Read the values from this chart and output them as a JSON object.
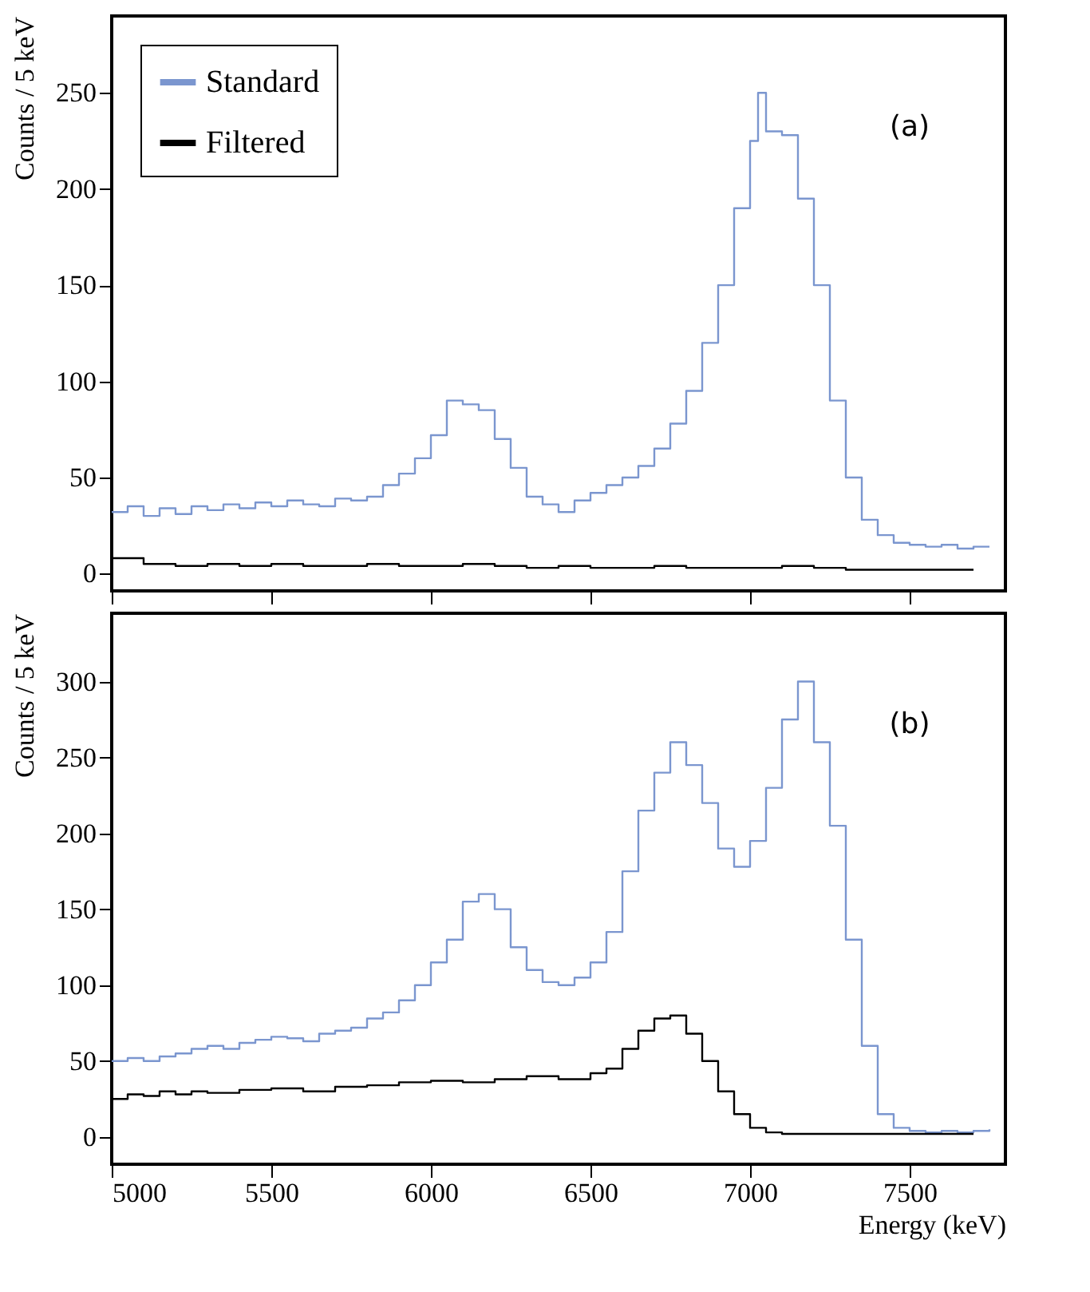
{
  "chart_data": [
    {
      "type": "step",
      "ylabel": "Counts / 5 keV",
      "annotations": [
        "(a)"
      ],
      "xlim": [
        5000,
        7800
      ],
      "xticks": [
        5000,
        5500,
        6000,
        6500,
        7000,
        7500
      ],
      "ylim": [
        -9,
        290
      ],
      "yticks": [
        0,
        50,
        100,
        150,
        200,
        250
      ],
      "tick_labels": "y",
      "grid": false,
      "legend": "top left",
      "line_style": "solid",
      "marker": "none",
      "series": [
        {
          "name": "Standard",
          "color": "#7b96cf",
          "x": [
            5000,
            5050,
            5100,
            5150,
            5200,
            5250,
            5300,
            5350,
            5400,
            5450,
            5500,
            5550,
            5600,
            5650,
            5700,
            5750,
            5800,
            5850,
            5900,
            5950,
            6000,
            6050,
            6100,
            6150,
            6200,
            6250,
            6300,
            6350,
            6400,
            6450,
            6500,
            6550,
            6600,
            6650,
            6700,
            6750,
            6800,
            6850,
            6900,
            6950,
            7000,
            7025,
            7050,
            7100,
            7150,
            7200,
            7250,
            7300,
            7350,
            7400,
            7450,
            7500,
            7550,
            7600,
            7650,
            7700,
            7750
          ],
          "values": [
            32,
            35,
            30,
            34,
            31,
            35,
            33,
            36,
            34,
            37,
            35,
            38,
            36,
            35,
            39,
            38,
            40,
            46,
            52,
            60,
            72,
            90,
            88,
            85,
            70,
            55,
            40,
            36,
            32,
            38,
            42,
            46,
            50,
            56,
            65,
            78,
            95,
            120,
            150,
            190,
            225,
            250,
            230,
            228,
            195,
            150,
            90,
            50,
            28,
            20,
            16,
            15,
            14,
            15,
            13,
            14,
            14
          ]
        },
        {
          "name": "Filtered",
          "color": "#000000",
          "x": [
            5000,
            5100,
            5200,
            5300,
            5400,
            5500,
            5600,
            5700,
            5800,
            5900,
            6000,
            6100,
            6200,
            6300,
            6400,
            6500,
            6600,
            6700,
            6800,
            6900,
            7000,
            7100,
            7200,
            7300,
            7400,
            7500,
            7600,
            7700
          ],
          "values": [
            8,
            5,
            4,
            5,
            4,
            5,
            4,
            4,
            5,
            4,
            4,
            5,
            4,
            3,
            4,
            3,
            3,
            4,
            3,
            3,
            3,
            4,
            3,
            2,
            2,
            2,
            2,
            2
          ]
        }
      ]
    },
    {
      "type": "step",
      "xlabel": "Energy (keV)",
      "ylabel": "Counts / 5 keV",
      "annotations": [
        "(b)"
      ],
      "xlim": [
        5000,
        7800
      ],
      "xticks": [
        5000,
        5500,
        6000,
        6500,
        7000,
        7500
      ],
      "ylim": [
        -18,
        345
      ],
      "yticks": [
        0,
        50,
        100,
        150,
        200,
        250,
        300
      ],
      "grid": false,
      "line_style": "solid",
      "marker": "none",
      "series": [
        {
          "color": "#7b96cf",
          "x": [
            5000,
            5050,
            5100,
            5150,
            5200,
            5250,
            5300,
            5350,
            5400,
            5450,
            5500,
            5550,
            5600,
            5650,
            5700,
            5750,
            5800,
            5850,
            5900,
            5950,
            6000,
            6050,
            6100,
            6150,
            6200,
            6250,
            6300,
            6350,
            6400,
            6450,
            6500,
            6550,
            6600,
            6650,
            6700,
            6750,
            6800,
            6850,
            6900,
            6950,
            7000,
            7050,
            7100,
            7150,
            7200,
            7250,
            7300,
            7350,
            7400,
            7450,
            7500,
            7550,
            7600,
            7650,
            7700,
            7750
          ],
          "values": [
            50,
            52,
            50,
            53,
            55,
            58,
            60,
            58,
            62,
            64,
            66,
            65,
            63,
            68,
            70,
            72,
            78,
            82,
            90,
            100,
            115,
            130,
            155,
            160,
            150,
            125,
            110,
            102,
            100,
            105,
            115,
            135,
            175,
            215,
            240,
            260,
            245,
            220,
            190,
            178,
            195,
            230,
            275,
            300,
            260,
            205,
            130,
            60,
            15,
            6,
            4,
            3,
            4,
            3,
            4,
            5
          ]
        },
        {
          "color": "#000000",
          "x": [
            5000,
            5050,
            5100,
            5150,
            5200,
            5250,
            5300,
            5400,
            5500,
            5600,
            5700,
            5800,
            5900,
            6000,
            6100,
            6200,
            6300,
            6400,
            6500,
            6550,
            6600,
            6650,
            6700,
            6750,
            6800,
            6850,
            6900,
            6950,
            7000,
            7050,
            7100,
            7200,
            7300,
            7400,
            7500,
            7600,
            7700
          ],
          "values": [
            25,
            28,
            27,
            30,
            28,
            30,
            29,
            31,
            32,
            30,
            33,
            34,
            36,
            37,
            36,
            38,
            40,
            38,
            42,
            45,
            58,
            70,
            78,
            80,
            68,
            50,
            30,
            15,
            6,
            3,
            2,
            2,
            2,
            2,
            2,
            2,
            2
          ]
        }
      ]
    }
  ]
}
